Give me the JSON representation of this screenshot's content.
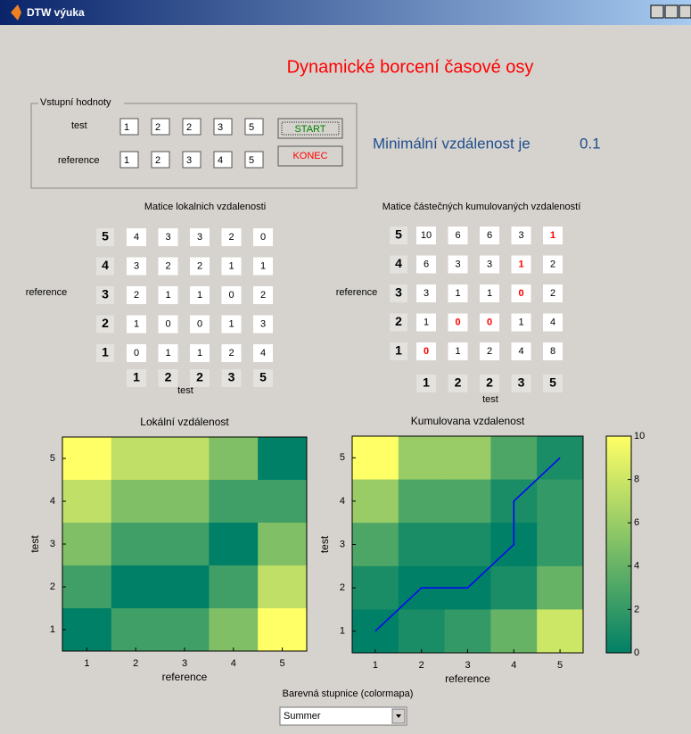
{
  "window": {
    "title": "DTW výuka"
  },
  "header": {
    "title": "Dynamické borcení časové osy"
  },
  "inputs": {
    "legend": "Vstupní hodnoty",
    "test_label": "test",
    "test_values": [
      1,
      2,
      2,
      3,
      5
    ],
    "reference_label": "reference",
    "reference_values": [
      1,
      2,
      3,
      4,
      5
    ]
  },
  "buttons": {
    "start": "START",
    "end": "KONEC"
  },
  "result": {
    "label": "Minimální vzdálenost je",
    "value": 0.1
  },
  "local_matrix": {
    "title": "Matice lokalnich vzdalenosti",
    "row_axis_label": "reference",
    "col_axis_label": "test",
    "rows": [
      [
        4,
        3,
        3,
        2,
        0
      ],
      [
        3,
        2,
        2,
        1,
        1
      ],
      [
        2,
        1,
        1,
        0,
        2
      ],
      [
        1,
        0,
        0,
        1,
        3
      ],
      [
        0,
        1,
        1,
        2,
        4
      ]
    ]
  },
  "cumulative_matrix": {
    "title": "Matice částečných kumulovaných vzdaleností",
    "row_axis_label": "reference",
    "col_axis_label": "test",
    "rows": [
      [
        10,
        6,
        6,
        3,
        1
      ],
      [
        6,
        3,
        3,
        1,
        2
      ],
      [
        3,
        1,
        1,
        0,
        2
      ],
      [
        1,
        0,
        0,
        1,
        4
      ],
      [
        0,
        1,
        2,
        4,
        8
      ]
    ],
    "path": [
      [
        1,
        1
      ],
      [
        2,
        2
      ],
      [
        3,
        2
      ],
      [
        4,
        3
      ],
      [
        4,
        4
      ],
      [
        5,
        5
      ]
    ],
    "highlight_color": "#ff0000"
  },
  "chart_data": [
    {
      "type": "heatmap",
      "title": "Lokální vzdálenost",
      "xlabel": "reference",
      "ylabel": "test",
      "xlim": [
        0.5,
        5.5
      ],
      "ylim": [
        0.5,
        5.5
      ],
      "xticks": [
        1,
        2,
        3,
        4,
        5
      ],
      "yticks": [
        1,
        2,
        3,
        4,
        5
      ],
      "clim": [
        0,
        4
      ]
    },
    {
      "type": "heatmap",
      "title": "Kumulovana vzdalenost",
      "xlabel": "reference",
      "ylabel": "test",
      "xlim": [
        0.5,
        5.5
      ],
      "ylim": [
        0.5,
        5.5
      ],
      "xticks": [
        1,
        2,
        3,
        4,
        5
      ],
      "yticks": [
        1,
        2,
        3,
        4,
        5
      ],
      "clim": [
        0,
        10
      ],
      "path_color": "#0000ff",
      "colorbar": {
        "ylim": [
          0,
          10
        ],
        "yticks": [
          0,
          2,
          4,
          6,
          8,
          10
        ]
      }
    }
  ],
  "colormap": {
    "label": "Barevná stupnice (colormapa)",
    "selected": "Summer"
  }
}
